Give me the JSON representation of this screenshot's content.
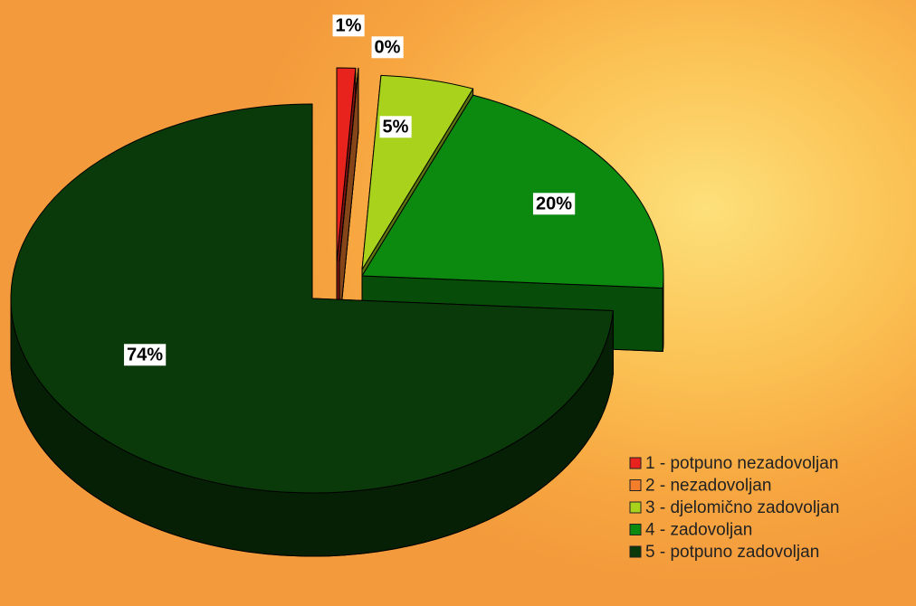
{
  "chart_data": {
    "type": "pie",
    "categories": [
      "1 - potpuno nezadovoljan",
      "2 - nezadovoljan",
      "3 - djelomično zadovoljan",
      "4 - zadovoljan",
      "5 - potpuno zadovoljan"
    ],
    "values": [
      1,
      0,
      5,
      20,
      74
    ],
    "value_labels": [
      "1%",
      "0%",
      "5%",
      "20%",
      "74%"
    ],
    "colors": [
      "#e8221c",
      "#f27e2c",
      "#a8d21c",
      "#0c8a10",
      "#0a3a0a"
    ],
    "legend": "bottom-right"
  }
}
